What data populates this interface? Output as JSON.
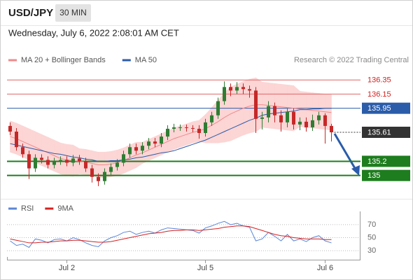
{
  "header": {
    "symbol": "USD/JPY",
    "timeframe": "30 MIN",
    "timestamp": "Wednesday, July 6, 2022 2:08:01 AM CET"
  },
  "chart_data": [
    {
      "type": "candlestick",
      "source": "Research © 2022 Trading Central",
      "ylim": [
        134.69,
        136.54
      ],
      "up_color": "#2e7d32",
      "down_color": "#c62828",
      "open": [
        135.7,
        135.62,
        135.4,
        135.3,
        135.1,
        135.25,
        135.22,
        135.15,
        135.2,
        135.22,
        135.18,
        135.24,
        135.2,
        135.1,
        134.98,
        134.92,
        135.05,
        135.12,
        135.18,
        135.3,
        135.4,
        135.35,
        135.42,
        135.48,
        135.45,
        135.55,
        135.66,
        135.68,
        135.68,
        135.67,
        135.66,
        135.6,
        135.75,
        135.85,
        136.05,
        136.25,
        136.2,
        136.25,
        136.22,
        136.2,
        135.8,
        135.82,
        135.98,
        135.85,
        135.75,
        135.9,
        135.72,
        135.76,
        135.68,
        135.78,
        135.85,
        135.7
      ],
      "high": [
        135.75,
        135.67,
        135.45,
        135.35,
        135.3,
        135.3,
        135.27,
        135.25,
        135.27,
        135.27,
        135.29,
        135.29,
        135.25,
        135.15,
        135.03,
        135.1,
        135.17,
        135.23,
        135.35,
        135.45,
        135.45,
        135.47,
        135.53,
        135.53,
        135.6,
        135.71,
        135.73,
        135.72,
        135.72,
        135.71,
        135.71,
        135.8,
        135.9,
        136.1,
        136.33,
        136.3,
        136.32,
        136.3,
        136.27,
        136.25,
        135.9,
        136.05,
        136.03,
        135.92,
        135.95,
        135.95,
        135.82,
        135.82,
        135.86,
        135.9,
        135.88,
        135.73
      ],
      "low": [
        135.57,
        135.35,
        135.25,
        134.95,
        135.05,
        135.17,
        135.1,
        135.1,
        135.15,
        135.13,
        135.13,
        135.15,
        135.05,
        134.9,
        134.85,
        134.87,
        135.0,
        135.07,
        135.13,
        135.25,
        135.3,
        135.3,
        135.37,
        135.4,
        135.4,
        135.5,
        135.61,
        135.63,
        135.62,
        135.61,
        135.52,
        135.55,
        135.7,
        135.8,
        136.0,
        136.12,
        136.15,
        136.15,
        136.1,
        135.6,
        135.65,
        135.75,
        135.75,
        135.62,
        135.68,
        135.65,
        135.64,
        135.62,
        135.63,
        135.72,
        135.45,
        135.48
      ],
      "close": [
        135.62,
        135.4,
        135.3,
        135.1,
        135.25,
        135.22,
        135.15,
        135.2,
        135.22,
        135.18,
        135.24,
        135.2,
        135.1,
        134.98,
        134.92,
        135.05,
        135.12,
        135.18,
        135.3,
        135.4,
        135.35,
        135.42,
        135.48,
        135.45,
        135.55,
        135.66,
        135.68,
        135.68,
        135.67,
        135.66,
        135.6,
        135.75,
        135.85,
        136.05,
        136.25,
        136.2,
        136.25,
        136.22,
        136.2,
        135.8,
        135.82,
        135.98,
        135.85,
        135.75,
        135.9,
        135.72,
        135.76,
        135.68,
        135.78,
        135.85,
        135.7,
        135.61
      ],
      "series": [
        {
          "name": "MA 20 + Bollinger Bands",
          "color": "#f08a8a",
          "band_color": "#fcd5d5",
          "values": [
            135.55,
            135.52,
            135.48,
            135.44,
            135.4,
            135.36,
            135.32,
            135.28,
            135.24,
            135.22,
            135.21,
            135.2,
            135.19,
            135.17,
            135.15,
            135.15,
            135.16,
            135.18,
            135.21,
            135.25,
            135.29,
            135.32,
            135.36,
            135.4,
            135.44,
            135.48,
            135.52,
            135.55,
            135.58,
            135.61,
            135.63,
            135.66,
            135.71,
            135.76,
            135.82,
            135.87,
            135.91,
            135.95,
            135.98,
            136.0,
            136.0,
            135.99,
            135.98,
            135.97,
            135.96,
            135.95,
            135.94,
            135.93,
            135.92,
            135.91,
            135.9,
            135.89
          ],
          "upper": [
            135.77,
            135.74,
            135.7,
            135.66,
            135.62,
            135.58,
            135.54,
            135.5,
            135.46,
            135.44,
            135.43,
            135.38,
            135.37,
            135.35,
            135.33,
            135.33,
            135.34,
            135.36,
            135.39,
            135.43,
            135.47,
            135.47,
            135.51,
            135.55,
            135.59,
            135.63,
            135.67,
            135.7,
            135.73,
            135.76,
            135.78,
            135.86,
            135.96,
            136.06,
            136.17,
            136.25,
            136.29,
            136.33,
            136.36,
            136.38,
            136.32,
            136.31,
            136.3,
            136.29,
            136.28,
            136.27,
            136.19,
            136.18,
            136.17,
            136.16,
            136.15,
            136.14
          ],
          "lower": [
            135.33,
            135.3,
            135.26,
            135.22,
            135.18,
            135.14,
            135.1,
            135.06,
            135.02,
            135.0,
            134.99,
            135.02,
            135.01,
            134.99,
            134.97,
            134.97,
            134.98,
            135.0,
            135.03,
            135.07,
            135.11,
            135.17,
            135.21,
            135.25,
            135.29,
            135.33,
            135.37,
            135.4,
            135.43,
            135.46,
            135.48,
            135.46,
            135.46,
            135.46,
            135.47,
            135.49,
            135.53,
            135.57,
            135.6,
            135.62,
            135.68,
            135.67,
            135.66,
            135.65,
            135.64,
            135.63,
            135.69,
            135.68,
            135.67,
            135.66,
            135.65,
            135.64
          ]
        },
        {
          "name": "MA 50",
          "color": "#2a5caa",
          "values": [
            135.45,
            135.43,
            135.41,
            135.39,
            135.37,
            135.35,
            135.33,
            135.31,
            135.3,
            135.28,
            135.26,
            135.25,
            135.23,
            135.22,
            135.2,
            135.2,
            135.21,
            135.21,
            135.22,
            135.23,
            135.25,
            135.26,
            135.28,
            135.3,
            135.32,
            135.33,
            135.35,
            135.38,
            135.41,
            135.44,
            135.47,
            135.5,
            135.54,
            135.58,
            135.62,
            135.66,
            135.7,
            135.74,
            135.78,
            135.81,
            135.85,
            135.87,
            135.88,
            135.89,
            135.9,
            135.91,
            135.93,
            135.93,
            135.94,
            135.94,
            135.95,
            135.95
          ]
        }
      ],
      "levels": [
        {
          "value": 136.35,
          "color": "#e06666",
          "text_color": "#d32020",
          "boxed": false,
          "width": 1
        },
        {
          "value": 136.15,
          "color": "#e06666",
          "text_color": "#d32020",
          "boxed": false,
          "width": 1
        },
        {
          "value": 135.95,
          "color": "#2a5caa",
          "text_color": "#ffffff",
          "boxed": true,
          "width": 1
        },
        {
          "value": 135.61,
          "color": "#333333",
          "text_color": "#ffffff",
          "boxed": true,
          "width": 1,
          "dotted": true
        },
        {
          "value": 135.2,
          "color": "#1e7d1e",
          "text_color": "#ffffff",
          "boxed": true,
          "width": 2
        },
        {
          "value": 135.0,
          "color": "#1e7d1e",
          "text_color": "#ffffff",
          "boxed": true,
          "width": 2
        }
      ]
    },
    {
      "type": "line",
      "ylim": [
        15,
        85
      ],
      "yticks": [
        70,
        50,
        30
      ],
      "grid": true,
      "categories": [
        null,
        null,
        null,
        null,
        null,
        null,
        null,
        null,
        null,
        "Jul 2",
        null,
        null,
        null,
        null,
        null,
        null,
        null,
        null,
        null,
        null,
        null,
        null,
        null,
        null,
        null,
        null,
        null,
        null,
        null,
        null,
        null,
        "Jul 5",
        null,
        null,
        null,
        null,
        null,
        null,
        null,
        null,
        null,
        null,
        null,
        null,
        null,
        null,
        null,
        null,
        null,
        null,
        "Jul 6",
        null
      ],
      "series": [
        {
          "name": "RSI",
          "color": "#5b86d6",
          "values": [
            45,
            38,
            40,
            35,
            48,
            46,
            42,
            47,
            48,
            45,
            50,
            47,
            42,
            38,
            36,
            45,
            50,
            53,
            58,
            60,
            55,
            58,
            60,
            57,
            62,
            65,
            64,
            63,
            62,
            61,
            57,
            65,
            68,
            72,
            75,
            70,
            72,
            68,
            66,
            45,
            48,
            58,
            52,
            45,
            55,
            45,
            48,
            44,
            50,
            53,
            45,
            42
          ]
        },
        {
          "name": "9MA",
          "color": "#d62020",
          "values": [
            48,
            46,
            44,
            42,
            42,
            43,
            43,
            44,
            45,
            45,
            46,
            46,
            45,
            44,
            43,
            43,
            44,
            46,
            48,
            50,
            52,
            54,
            56,
            57,
            58,
            60,
            61,
            61,
            62,
            62,
            61,
            62,
            63,
            64,
            66,
            67,
            68,
            68,
            67,
            64,
            61,
            58,
            55,
            53,
            52,
            50,
            49,
            48,
            48,
            48,
            47,
            47
          ]
        }
      ]
    }
  ]
}
